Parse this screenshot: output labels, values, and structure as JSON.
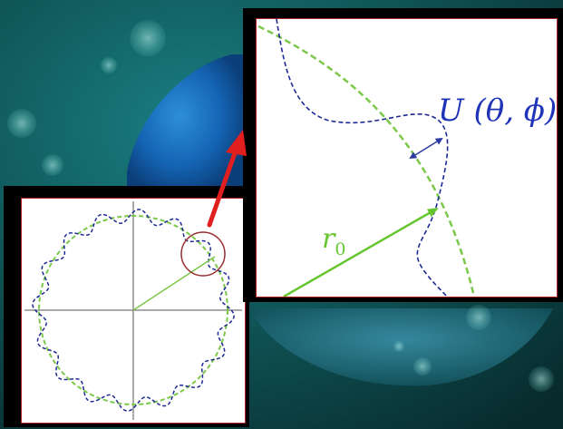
{
  "figure": {
    "labels": {
      "deformation": "U (θ, ϕ)",
      "radius": "r",
      "radius_subscript": "0"
    },
    "colors": {
      "reference_sphere": "#7cc84a",
      "deformed_surface": "#1d2a93",
      "radius_arrow": "#66c630",
      "zoom_arrow": "#e21f1f",
      "zoom_circle": "#9a2f2f",
      "deformation_arrow": "#2a3aa0",
      "axes": "#555555",
      "background": "#0c3a3d"
    },
    "wave": {
      "lobes": 16,
      "relative_amplitude": 0.07
    }
  }
}
